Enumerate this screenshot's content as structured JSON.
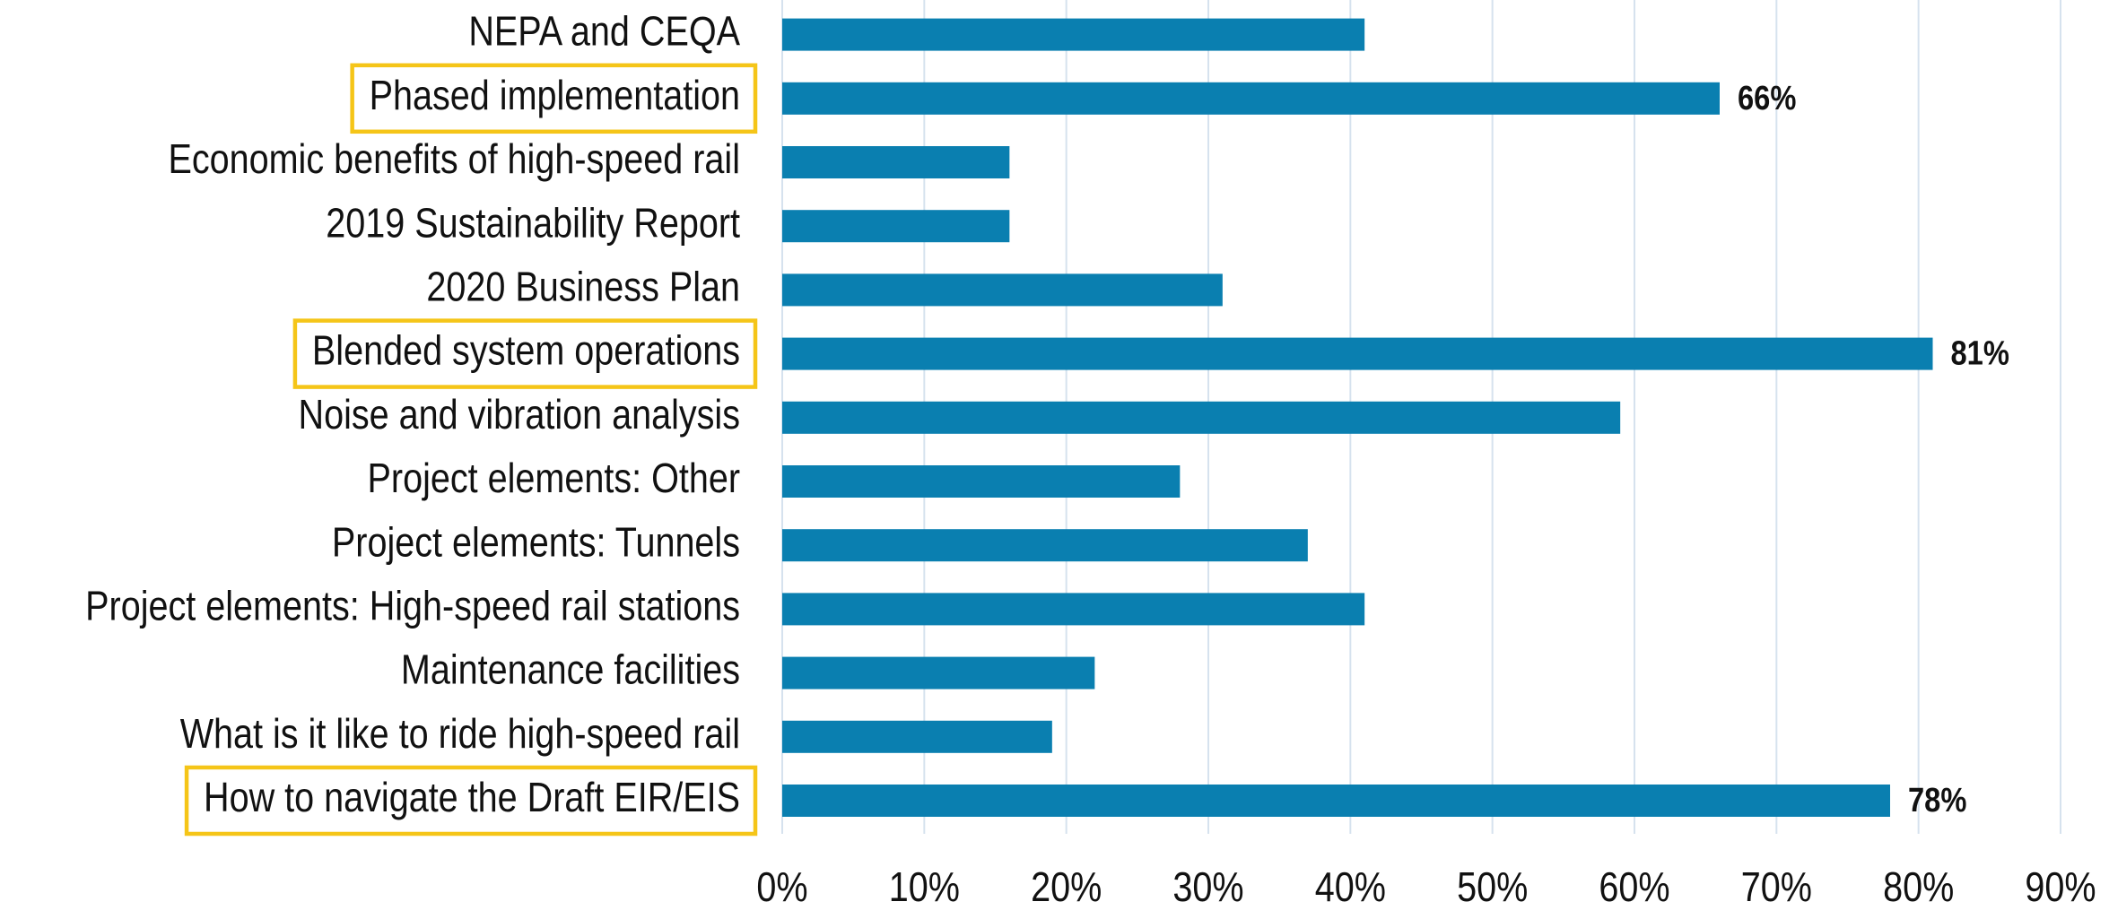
{
  "chart_data": {
    "type": "bar",
    "orientation": "horizontal",
    "categories": [
      "NEPA and CEQA",
      "Phased implementation",
      "Economic benefits of high-speed rail",
      "2019 Sustainability Report",
      "2020 Business Plan",
      "Blended system operations",
      "Noise and vibration analysis",
      "Project elements: Other",
      "Project elements: Tunnels",
      "Project elements: High-speed rail stations",
      "Maintenance facilities",
      "What is it like to ride high-speed rail",
      "How to navigate the Draft EIR/EIS"
    ],
    "values": [
      41,
      66,
      16,
      16,
      31,
      81,
      59,
      28,
      37,
      41,
      22,
      19,
      78
    ],
    "value_labels": [
      null,
      "66%",
      null,
      null,
      null,
      "81%",
      null,
      null,
      null,
      null,
      null,
      null,
      "78%"
    ],
    "highlight": [
      1,
      5,
      12
    ],
    "highlight_color": "#f5c518",
    "color": "#0a7fb0",
    "xlim": [
      0,
      90
    ],
    "xticks": [
      {
        "value": 0,
        "label": "0%"
      },
      {
        "value": 10,
        "label": "10%"
      },
      {
        "value": 20,
        "label": "20%"
      },
      {
        "value": 30,
        "label": "30%"
      },
      {
        "value": 40,
        "label": "40%"
      },
      {
        "value": 50,
        "label": "50%"
      },
      {
        "value": 60,
        "label": "60%"
      },
      {
        "value": 70,
        "label": "70%"
      },
      {
        "value": 80,
        "label": "80%"
      },
      {
        "value": 90,
        "label": "90%"
      }
    ],
    "grid": true
  }
}
